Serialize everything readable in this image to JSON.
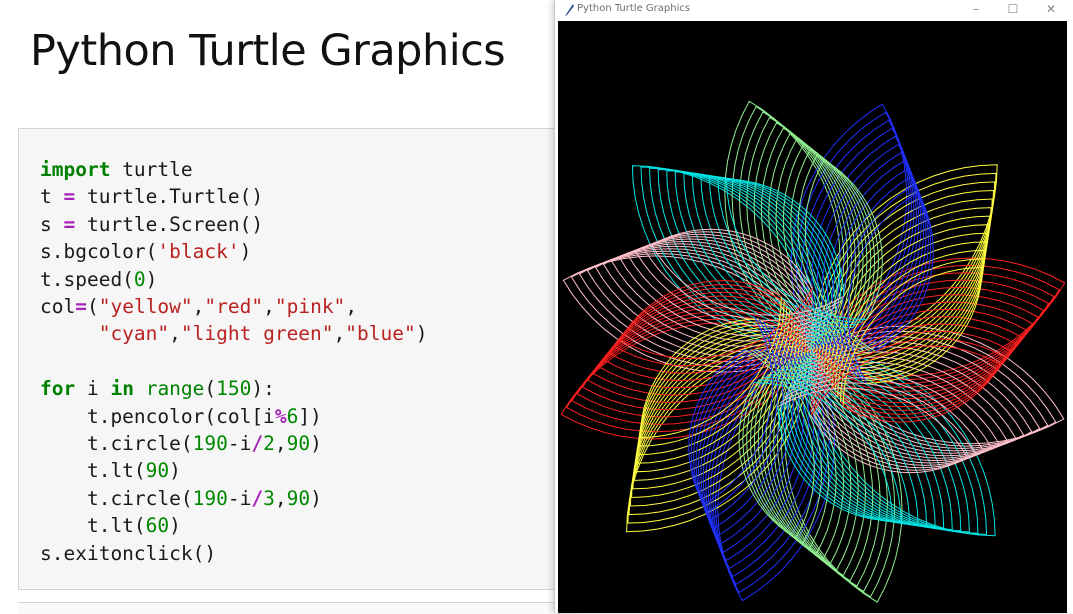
{
  "slide": {
    "title": "Python Turtle Graphics"
  },
  "code": {
    "lines": [
      "import turtle",
      "t = turtle.Turtle()",
      "s = turtle.Screen()",
      "s.bgcolor('black')",
      "t.speed(0)",
      "col=(\"yellow\",\"red\",\"pink\",",
      "     \"cyan\",\"light green\",\"blue\")",
      "",
      "for i in range(150):",
      "    t.pencolor(col[i%6])",
      "    t.circle(190-i/2,90)",
      "    t.lt(90)",
      "    t.circle(190-i/3,90)",
      "    t.lt(60)",
      "s.exitonclick()"
    ]
  },
  "window": {
    "title": "Python Turtle Graphics",
    "minimize_glyph": "–",
    "maximize_glyph": "☐",
    "close_glyph": "✕",
    "icon": "feather-icon",
    "canvas_background": "#000000",
    "pen_colors": [
      "#ffff40",
      "#ff2020",
      "#ffc0cb",
      "#00e5e5",
      "#90ee90",
      "#2030ff"
    ]
  }
}
